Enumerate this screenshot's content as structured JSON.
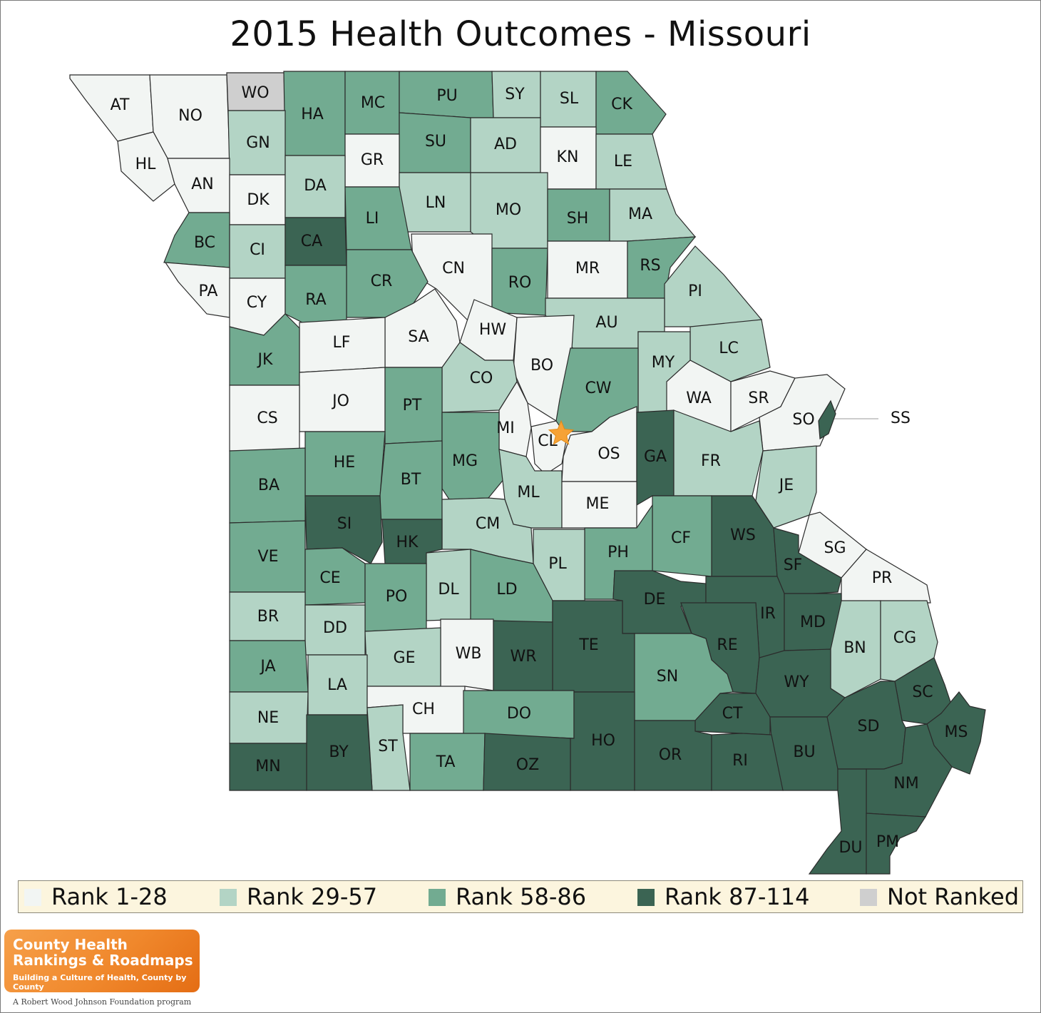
{
  "title": "2015 Health Outcomes - Missouri",
  "colors": {
    "rank_1_28": "#f2f5f3",
    "rank_29_57": "#b3d4c5",
    "rank_58_86": "#72ab91",
    "rank_87_114": "#3b6453",
    "not_ranked": "#cfcfcf"
  },
  "legend": [
    {
      "label": "Rank 1-28",
      "class": "rank_1_28"
    },
    {
      "label": "Rank 29-57",
      "class": "rank_29_57"
    },
    {
      "label": "Rank 58-86",
      "class": "rank_58_86"
    },
    {
      "label": "Rank 87-114",
      "class": "rank_87_114"
    },
    {
      "label": "Not Ranked",
      "class": "not_ranked"
    }
  ],
  "counties": [
    {
      "abbr": "AT",
      "rank_class": "rank_1_28"
    },
    {
      "abbr": "NO",
      "rank_class": "rank_1_28"
    },
    {
      "abbr": "WO",
      "rank_class": "not_ranked"
    },
    {
      "abbr": "HA",
      "rank_class": "rank_58_86"
    },
    {
      "abbr": "MC",
      "rank_class": "rank_58_86"
    },
    {
      "abbr": "PU",
      "rank_class": "rank_58_86"
    },
    {
      "abbr": "SY",
      "rank_class": "rank_29_57"
    },
    {
      "abbr": "SL",
      "rank_class": "rank_29_57"
    },
    {
      "abbr": "CK",
      "rank_class": "rank_58_86"
    },
    {
      "abbr": "HL",
      "rank_class": "rank_1_28"
    },
    {
      "abbr": "GN",
      "rank_class": "rank_29_57"
    },
    {
      "abbr": "SU",
      "rank_class": "rank_58_86"
    },
    {
      "abbr": "AD",
      "rank_class": "rank_29_57"
    },
    {
      "abbr": "GR",
      "rank_class": "rank_1_28"
    },
    {
      "abbr": "KN",
      "rank_class": "rank_1_28"
    },
    {
      "abbr": "LE",
      "rank_class": "rank_29_57"
    },
    {
      "abbr": "AN",
      "rank_class": "rank_1_28"
    },
    {
      "abbr": "DK",
      "rank_class": "rank_1_28"
    },
    {
      "abbr": "DA",
      "rank_class": "rank_29_57"
    },
    {
      "abbr": "LN",
      "rank_class": "rank_29_57"
    },
    {
      "abbr": "MO",
      "rank_class": "rank_29_57"
    },
    {
      "abbr": "LI",
      "rank_class": "rank_58_86"
    },
    {
      "abbr": "SH",
      "rank_class": "rank_58_86"
    },
    {
      "abbr": "MA",
      "rank_class": "rank_29_57"
    },
    {
      "abbr": "BC",
      "rank_class": "rank_58_86"
    },
    {
      "abbr": "CI",
      "rank_class": "rank_29_57"
    },
    {
      "abbr": "CA",
      "rank_class": "rank_87_114"
    },
    {
      "abbr": "CN",
      "rank_class": "rank_1_28"
    },
    {
      "abbr": "CR",
      "rank_class": "rank_58_86"
    },
    {
      "abbr": "RO",
      "rank_class": "rank_58_86"
    },
    {
      "abbr": "MR",
      "rank_class": "rank_1_28"
    },
    {
      "abbr": "RS",
      "rank_class": "rank_58_86"
    },
    {
      "abbr": "PA",
      "rank_class": "rank_1_28"
    },
    {
      "abbr": "CY",
      "rank_class": "rank_1_28"
    },
    {
      "abbr": "RA",
      "rank_class": "rank_58_86"
    },
    {
      "abbr": "PI",
      "rank_class": "rank_29_57"
    },
    {
      "abbr": "AU",
      "rank_class": "rank_29_57"
    },
    {
      "abbr": "HW",
      "rank_class": "rank_1_28"
    },
    {
      "abbr": "SA",
      "rank_class": "rank_1_28"
    },
    {
      "abbr": "LF",
      "rank_class": "rank_1_28"
    },
    {
      "abbr": "JK",
      "rank_class": "rank_58_86"
    },
    {
      "abbr": "BO",
      "rank_class": "rank_1_28"
    },
    {
      "abbr": "LC",
      "rank_class": "rank_29_57"
    },
    {
      "abbr": "MY",
      "rank_class": "rank_29_57"
    },
    {
      "abbr": "CO",
      "rank_class": "rank_29_57"
    },
    {
      "abbr": "CW",
      "rank_class": "rank_58_86"
    },
    {
      "abbr": "JO",
      "rank_class": "rank_1_28"
    },
    {
      "abbr": "PT",
      "rank_class": "rank_58_86"
    },
    {
      "abbr": "WA",
      "rank_class": "rank_1_28"
    },
    {
      "abbr": "SR",
      "rank_class": "rank_1_28"
    },
    {
      "abbr": "CS",
      "rank_class": "rank_1_28"
    },
    {
      "abbr": "SO",
      "rank_class": "rank_1_28"
    },
    {
      "abbr": "SS",
      "rank_class": "rank_87_114"
    },
    {
      "abbr": "MI",
      "rank_class": "rank_1_28"
    },
    {
      "abbr": "CL",
      "rank_class": "rank_1_28"
    },
    {
      "abbr": "OS",
      "rank_class": "rank_1_28"
    },
    {
      "abbr": "GA",
      "rank_class": "rank_87_114"
    },
    {
      "abbr": "MG",
      "rank_class": "rank_58_86"
    },
    {
      "abbr": "HE",
      "rank_class": "rank_58_86"
    },
    {
      "abbr": "FR",
      "rank_class": "rank_29_57"
    },
    {
      "abbr": "BT",
      "rank_class": "rank_58_86"
    },
    {
      "abbr": "BA",
      "rank_class": "rank_58_86"
    },
    {
      "abbr": "JE",
      "rank_class": "rank_29_57"
    },
    {
      "abbr": "ML",
      "rank_class": "rank_29_57"
    },
    {
      "abbr": "ME",
      "rank_class": "rank_1_28"
    },
    {
      "abbr": "CM",
      "rank_class": "rank_29_57"
    },
    {
      "abbr": "SI",
      "rank_class": "rank_87_114"
    },
    {
      "abbr": "WS",
      "rank_class": "rank_87_114"
    },
    {
      "abbr": "CF",
      "rank_class": "rank_58_86"
    },
    {
      "abbr": "HK",
      "rank_class": "rank_87_114"
    },
    {
      "abbr": "SG",
      "rank_class": "rank_1_28"
    },
    {
      "abbr": "PH",
      "rank_class": "rank_58_86"
    },
    {
      "abbr": "SF",
      "rank_class": "rank_87_114"
    },
    {
      "abbr": "VE",
      "rank_class": "rank_58_86"
    },
    {
      "abbr": "PL",
      "rank_class": "rank_29_57"
    },
    {
      "abbr": "CE",
      "rank_class": "rank_58_86"
    },
    {
      "abbr": "PR",
      "rank_class": "rank_1_28"
    },
    {
      "abbr": "DL",
      "rank_class": "rank_29_57"
    },
    {
      "abbr": "LD",
      "rank_class": "rank_58_86"
    },
    {
      "abbr": "PO",
      "rank_class": "rank_58_86"
    },
    {
      "abbr": "DE",
      "rank_class": "rank_87_114"
    },
    {
      "abbr": "IR",
      "rank_class": "rank_87_114"
    },
    {
      "abbr": "BR",
      "rank_class": "rank_29_57"
    },
    {
      "abbr": "MD",
      "rank_class": "rank_87_114"
    },
    {
      "abbr": "DD",
      "rank_class": "rank_29_57"
    },
    {
      "abbr": "TE",
      "rank_class": "rank_87_114"
    },
    {
      "abbr": "RE",
      "rank_class": "rank_87_114"
    },
    {
      "abbr": "BN",
      "rank_class": "rank_29_57"
    },
    {
      "abbr": "CG",
      "rank_class": "rank_29_57"
    },
    {
      "abbr": "WB",
      "rank_class": "rank_1_28"
    },
    {
      "abbr": "WR",
      "rank_class": "rank_87_114"
    },
    {
      "abbr": "GE",
      "rank_class": "rank_29_57"
    },
    {
      "abbr": "JA",
      "rank_class": "rank_58_86"
    },
    {
      "abbr": "SN",
      "rank_class": "rank_58_86"
    },
    {
      "abbr": "WY",
      "rank_class": "rank_87_114"
    },
    {
      "abbr": "LA",
      "rank_class": "rank_29_57"
    },
    {
      "abbr": "SC",
      "rank_class": "rank_87_114"
    },
    {
      "abbr": "CH",
      "rank_class": "rank_1_28"
    },
    {
      "abbr": "DO",
      "rank_class": "rank_58_86"
    },
    {
      "abbr": "CT",
      "rank_class": "rank_87_114"
    },
    {
      "abbr": "NE",
      "rank_class": "rank_29_57"
    },
    {
      "abbr": "SD",
      "rank_class": "rank_87_114"
    },
    {
      "abbr": "MS",
      "rank_class": "rank_87_114"
    },
    {
      "abbr": "HO",
      "rank_class": "rank_87_114"
    },
    {
      "abbr": "ST",
      "rank_class": "rank_29_57"
    },
    {
      "abbr": "BY",
      "rank_class": "rank_87_114"
    },
    {
      "abbr": "OR",
      "rank_class": "rank_87_114"
    },
    {
      "abbr": "BU",
      "rank_class": "rank_87_114"
    },
    {
      "abbr": "RI",
      "rank_class": "rank_87_114"
    },
    {
      "abbr": "TA",
      "rank_class": "rank_58_86"
    },
    {
      "abbr": "OZ",
      "rank_class": "rank_87_114"
    },
    {
      "abbr": "MN",
      "rank_class": "rank_87_114"
    },
    {
      "abbr": "NM",
      "rank_class": "rank_87_114"
    },
    {
      "abbr": "DU",
      "rank_class": "rank_87_114"
    },
    {
      "abbr": "PM",
      "rank_class": "rank_87_114"
    }
  ],
  "logo": {
    "line1": "County Health",
    "line2": "Rankings & Roadmaps",
    "tagline": "Building a Culture of Health, County by County",
    "program": "A Robert Wood Johnson Foundation program"
  }
}
